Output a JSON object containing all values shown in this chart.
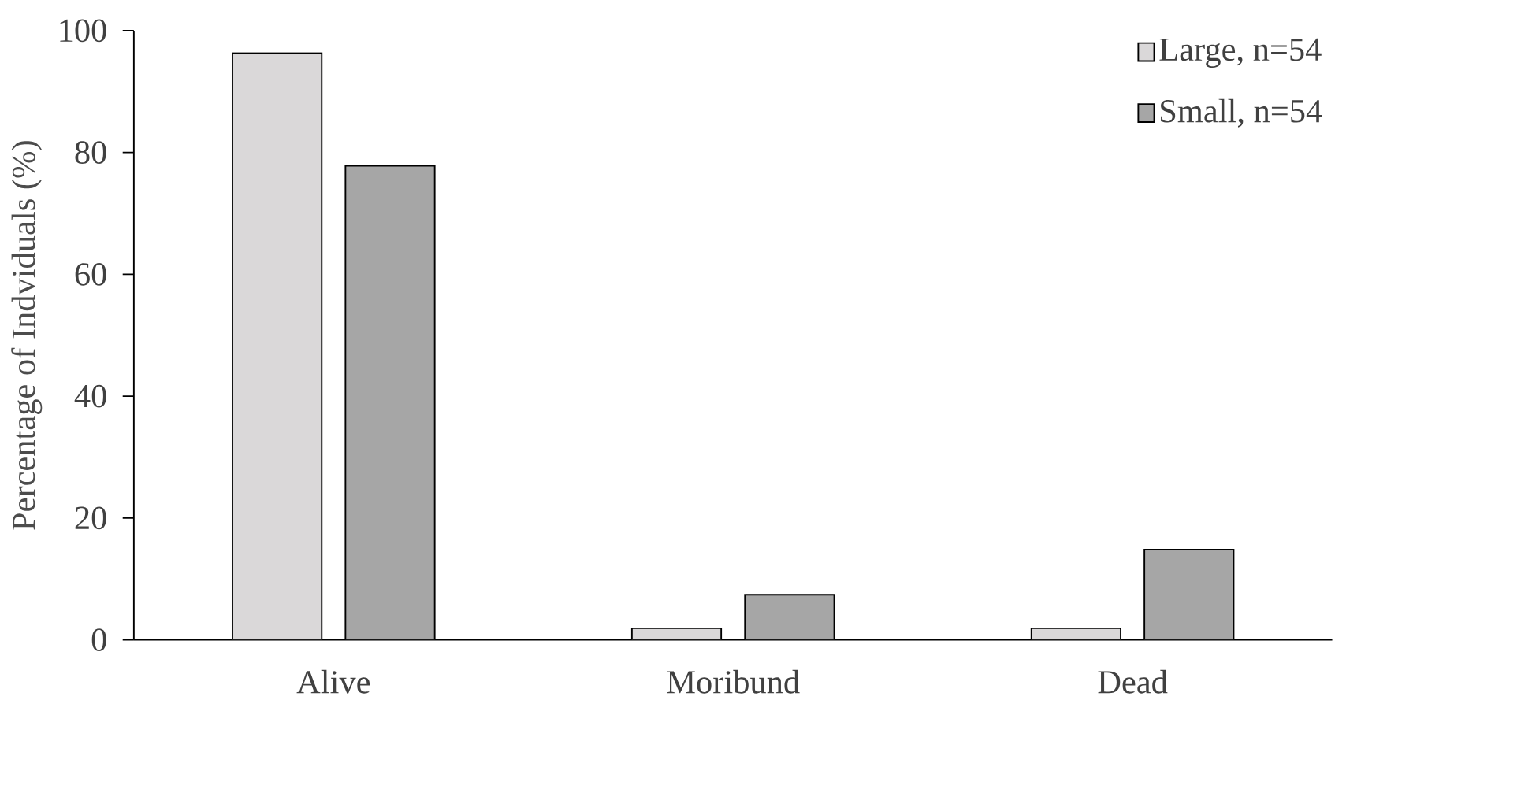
{
  "chart_data": {
    "type": "bar",
    "ylabel": "Percentage of Indviduals (%)",
    "categories": [
      "Alive",
      "Moribund",
      "Dead"
    ],
    "series": [
      {
        "name": "Large, n=54",
        "color": "#dad8d9",
        "values": [
          96.3,
          1.9,
          1.9
        ]
      },
      {
        "name": "Small, n=54",
        "color": "#a6a6a6",
        "values": [
          77.8,
          7.4,
          14.8
        ]
      }
    ],
    "ylim": [
      0,
      100
    ],
    "yticks": [
      0,
      20,
      40,
      60,
      80,
      100
    ],
    "grid": false,
    "legend": "top right"
  }
}
